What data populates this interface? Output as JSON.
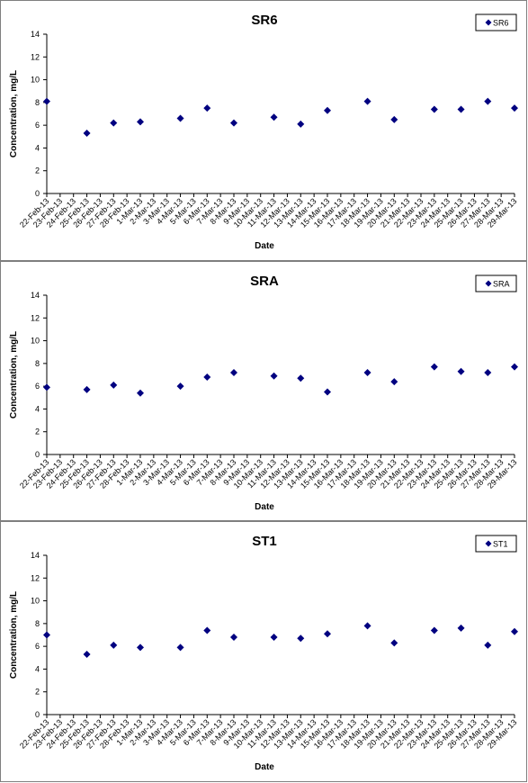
{
  "chart_data": [
    {
      "type": "scatter",
      "title": "SR6",
      "xlabel": "Date",
      "ylabel": "Concentration, mg/L",
      "ylim": [
        0,
        14
      ],
      "yticks": [
        0,
        2,
        4,
        6,
        8,
        10,
        12,
        14
      ],
      "categories": [
        "22-Feb-13",
        "23-Feb-13",
        "24-Feb-13",
        "25-Feb-13",
        "26-Feb-13",
        "27-Feb-13",
        "28-Feb-13",
        "1-Mar-13",
        "2-Mar-13",
        "3-Mar-13",
        "4-Mar-13",
        "5-Mar-13",
        "6-Mar-13",
        "7-Mar-13",
        "8-Mar-13",
        "9-Mar-13",
        "10-Mar-13",
        "11-Mar-13",
        "12-Mar-13",
        "13-Mar-13",
        "14-Mar-13",
        "15-Mar-13",
        "16-Mar-13",
        "17-Mar-13",
        "18-Mar-13",
        "19-Mar-13",
        "20-Mar-13",
        "21-Mar-13",
        "22-Mar-13",
        "23-Mar-13",
        "24-Mar-13",
        "25-Mar-13",
        "26-Mar-13",
        "27-Mar-13",
        "28-Mar-13",
        "29-Mar-13"
      ],
      "legend_position": "top-right",
      "grid": false,
      "series": [
        {
          "name": "SR6",
          "color": "#000080",
          "marker": "diamond",
          "points": [
            {
              "x": "22-Feb-13",
              "y": 8.1
            },
            {
              "x": "25-Feb-13",
              "y": 5.3
            },
            {
              "x": "27-Feb-13",
              "y": 6.2
            },
            {
              "x": "1-Mar-13",
              "y": 6.3
            },
            {
              "x": "4-Mar-13",
              "y": 6.6
            },
            {
              "x": "6-Mar-13",
              "y": 7.5
            },
            {
              "x": "8-Mar-13",
              "y": 6.2
            },
            {
              "x": "11-Mar-13",
              "y": 6.7
            },
            {
              "x": "13-Mar-13",
              "y": 6.1
            },
            {
              "x": "15-Mar-13",
              "y": 7.3
            },
            {
              "x": "18-Mar-13",
              "y": 8.1
            },
            {
              "x": "20-Mar-13",
              "y": 6.5
            },
            {
              "x": "23-Mar-13",
              "y": 7.4
            },
            {
              "x": "25-Mar-13",
              "y": 7.4
            },
            {
              "x": "27-Mar-13",
              "y": 8.1
            },
            {
              "x": "29-Mar-13",
              "y": 7.5
            }
          ]
        }
      ]
    },
    {
      "type": "scatter",
      "title": "SRA",
      "xlabel": "Date",
      "ylabel": "Concentration, mg/L",
      "ylim": [
        0,
        14
      ],
      "yticks": [
        0,
        2,
        4,
        6,
        8,
        10,
        12,
        14
      ],
      "categories": [
        "22-Feb-13",
        "23-Feb-13",
        "24-Feb-13",
        "25-Feb-13",
        "26-Feb-13",
        "27-Feb-13",
        "28-Feb-13",
        "1-Mar-13",
        "2-Mar-13",
        "3-Mar-13",
        "4-Mar-13",
        "5-Mar-13",
        "6-Mar-13",
        "7-Mar-13",
        "8-Mar-13",
        "9-Mar-13",
        "10-Mar-13",
        "11-Mar-13",
        "12-Mar-13",
        "13-Mar-13",
        "14-Mar-13",
        "15-Mar-13",
        "16-Mar-13",
        "17-Mar-13",
        "18-Mar-13",
        "19-Mar-13",
        "20-Mar-13",
        "21-Mar-13",
        "22-Mar-13",
        "23-Mar-13",
        "24-Mar-13",
        "25-Mar-13",
        "26-Mar-13",
        "27-Mar-13",
        "28-Mar-13",
        "29-Mar-13"
      ],
      "legend_position": "top-right",
      "grid": false,
      "series": [
        {
          "name": "SRA",
          "color": "#000080",
          "marker": "diamond",
          "points": [
            {
              "x": "22-Feb-13",
              "y": 5.9
            },
            {
              "x": "25-Feb-13",
              "y": 5.7
            },
            {
              "x": "27-Feb-13",
              "y": 6.1
            },
            {
              "x": "1-Mar-13",
              "y": 5.4
            },
            {
              "x": "4-Mar-13",
              "y": 6.0
            },
            {
              "x": "6-Mar-13",
              "y": 6.8
            },
            {
              "x": "8-Mar-13",
              "y": 7.2
            },
            {
              "x": "11-Mar-13",
              "y": 6.9
            },
            {
              "x": "13-Mar-13",
              "y": 6.7
            },
            {
              "x": "15-Mar-13",
              "y": 5.5
            },
            {
              "x": "18-Mar-13",
              "y": 7.2
            },
            {
              "x": "20-Mar-13",
              "y": 6.4
            },
            {
              "x": "23-Mar-13",
              "y": 7.7
            },
            {
              "x": "25-Mar-13",
              "y": 7.3
            },
            {
              "x": "27-Mar-13",
              "y": 7.2
            },
            {
              "x": "29-Mar-13",
              "y": 7.7
            }
          ]
        }
      ]
    },
    {
      "type": "scatter",
      "title": "ST1",
      "xlabel": "Date",
      "ylabel": "Concentration, mg/L",
      "ylim": [
        0,
        14
      ],
      "yticks": [
        0,
        2,
        4,
        6,
        8,
        10,
        12,
        14
      ],
      "categories": [
        "22-Feb-13",
        "23-Feb-13",
        "24-Feb-13",
        "25-Feb-13",
        "26-Feb-13",
        "27-Feb-13",
        "28-Feb-13",
        "1-Mar-13",
        "2-Mar-13",
        "3-Mar-13",
        "4-Mar-13",
        "5-Mar-13",
        "6-Mar-13",
        "7-Mar-13",
        "8-Mar-13",
        "9-Mar-13",
        "10-Mar-13",
        "11-Mar-13",
        "12-Mar-13",
        "13-Mar-13",
        "14-Mar-13",
        "15-Mar-13",
        "16-Mar-13",
        "17-Mar-13",
        "18-Mar-13",
        "19-Mar-13",
        "20-Mar-13",
        "21-Mar-13",
        "22-Mar-13",
        "23-Mar-13",
        "24-Mar-13",
        "25-Mar-13",
        "26-Mar-13",
        "27-Mar-13",
        "28-Mar-13",
        "29-Mar-13"
      ],
      "legend_position": "top-right",
      "grid": false,
      "series": [
        {
          "name": "ST1",
          "color": "#000080",
          "marker": "diamond",
          "points": [
            {
              "x": "22-Feb-13",
              "y": 7.0
            },
            {
              "x": "25-Feb-13",
              "y": 5.3
            },
            {
              "x": "27-Feb-13",
              "y": 6.1
            },
            {
              "x": "1-Mar-13",
              "y": 5.9
            },
            {
              "x": "4-Mar-13",
              "y": 5.9
            },
            {
              "x": "6-Mar-13",
              "y": 7.4
            },
            {
              "x": "8-Mar-13",
              "y": 6.8
            },
            {
              "x": "11-Mar-13",
              "y": 6.8
            },
            {
              "x": "13-Mar-13",
              "y": 6.7
            },
            {
              "x": "15-Mar-13",
              "y": 7.1
            },
            {
              "x": "18-Mar-13",
              "y": 7.8
            },
            {
              "x": "20-Mar-13",
              "y": 6.3
            },
            {
              "x": "23-Mar-13",
              "y": 7.4
            },
            {
              "x": "25-Mar-13",
              "y": 7.6
            },
            {
              "x": "27-Mar-13",
              "y": 6.1
            },
            {
              "x": "29-Mar-13",
              "y": 7.3
            }
          ]
        }
      ]
    }
  ]
}
